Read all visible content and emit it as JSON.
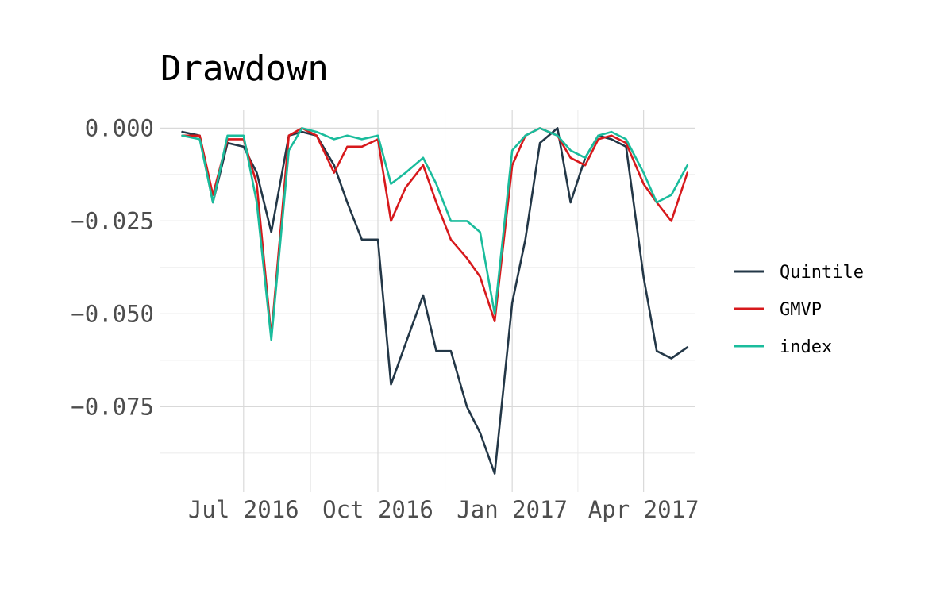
{
  "chart_data": {
    "type": "line",
    "title": "Drawdown",
    "xlabel": "",
    "ylabel": "",
    "x_ticks": [
      "Jul 2016",
      "Oct 2016",
      "Jan 2017",
      "Apr 2017"
    ],
    "y_ticks": [
      0.0,
      -0.025,
      -0.05,
      -0.075
    ],
    "y_tick_labels": [
      "0.000",
      "−0.025",
      "−0.050",
      "−0.075"
    ],
    "xlim": [
      "2016-05-05",
      "2017-05-06"
    ],
    "ylim": [
      -0.098,
      0.005
    ],
    "grid": true,
    "legend_position": "right",
    "x": [
      "2016-05-20",
      "2016-06-01",
      "2016-06-10",
      "2016-06-20",
      "2016-07-01",
      "2016-07-10",
      "2016-07-20",
      "2016-08-01",
      "2016-08-10",
      "2016-08-20",
      "2016-09-01",
      "2016-09-10",
      "2016-09-20",
      "2016-10-01",
      "2016-10-10",
      "2016-10-20",
      "2016-11-01",
      "2016-11-10",
      "2016-11-20",
      "2016-12-01",
      "2016-12-10",
      "2016-12-20",
      "2017-01-01",
      "2017-01-10",
      "2017-01-20",
      "2017-02-01",
      "2017-02-10",
      "2017-02-20",
      "2017-03-01",
      "2017-03-10",
      "2017-03-20",
      "2017-04-01",
      "2017-04-10",
      "2017-04-20",
      "2017-05-01"
    ],
    "series": [
      {
        "name": "Quintile",
        "color": "#233747",
        "values": [
          -0.001,
          -0.002,
          -0.02,
          -0.004,
          -0.005,
          -0.012,
          -0.028,
          -0.002,
          -0.001,
          -0.002,
          -0.01,
          -0.02,
          -0.03,
          -0.03,
          -0.069,
          -0.058,
          -0.045,
          -0.06,
          -0.06,
          -0.075,
          -0.082,
          -0.093,
          -0.047,
          -0.03,
          -0.004,
          0.0,
          -0.02,
          -0.008,
          -0.002,
          -0.003,
          -0.005,
          -0.04,
          -0.06,
          -0.062,
          -0.059
        ]
      },
      {
        "name": "GMVP",
        "color": "#d7191c",
        "values": [
          -0.002,
          -0.002,
          -0.018,
          -0.003,
          -0.003,
          -0.015,
          -0.056,
          -0.002,
          0.0,
          -0.002,
          -0.012,
          -0.005,
          -0.005,
          -0.003,
          -0.025,
          -0.016,
          -0.01,
          -0.02,
          -0.03,
          -0.035,
          -0.04,
          -0.052,
          -0.01,
          -0.002,
          0.0,
          -0.002,
          -0.008,
          -0.01,
          -0.003,
          -0.002,
          -0.004,
          -0.015,
          -0.02,
          -0.025,
          -0.012
        ]
      },
      {
        "name": "index",
        "color": "#1abc9c",
        "values": [
          -0.002,
          -0.003,
          -0.02,
          -0.002,
          -0.002,
          -0.02,
          -0.057,
          -0.006,
          0.0,
          -0.001,
          -0.003,
          -0.002,
          -0.003,
          -0.002,
          -0.015,
          -0.012,
          -0.008,
          -0.015,
          -0.025,
          -0.025,
          -0.028,
          -0.05,
          -0.006,
          -0.002,
          0.0,
          -0.002,
          -0.006,
          -0.008,
          -0.002,
          -0.001,
          -0.003,
          -0.012,
          -0.02,
          -0.018,
          -0.01
        ]
      }
    ]
  }
}
